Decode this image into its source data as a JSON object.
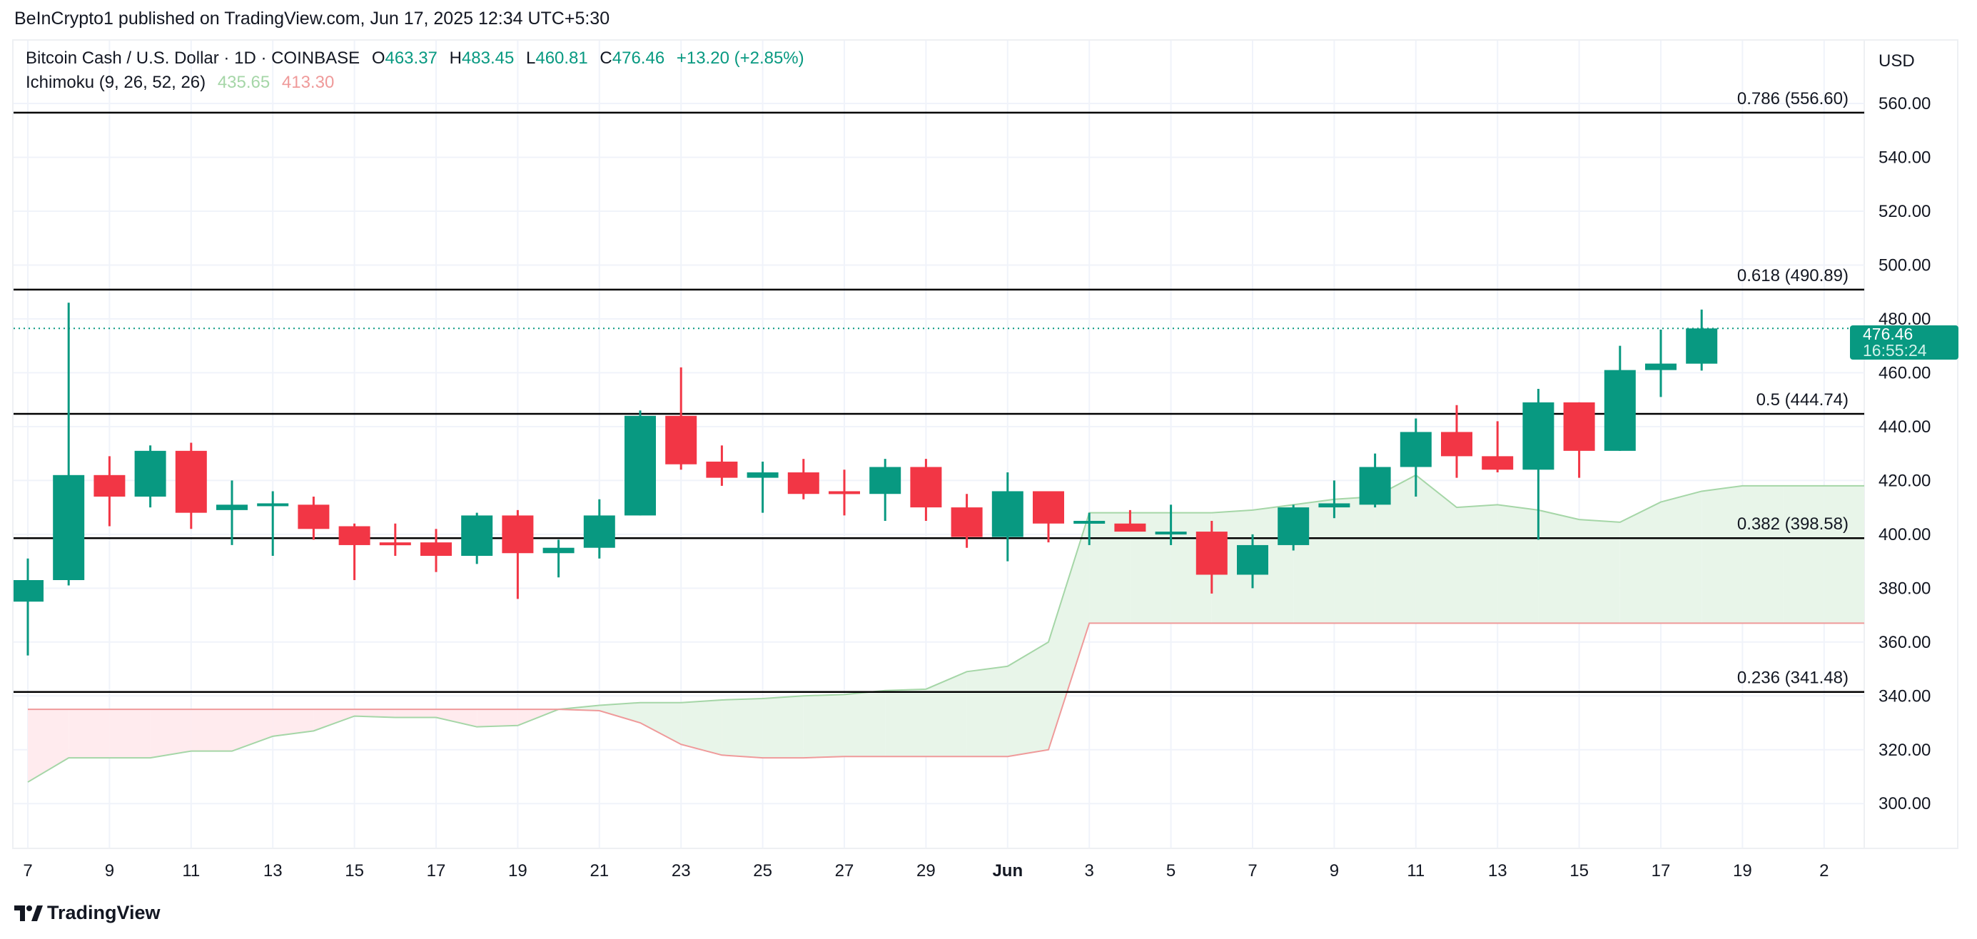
{
  "published": "BeInCrypto1 published on TradingView.com, Jun 17, 2025 12:34 UTC+5:30",
  "legend": {
    "symbol": "Bitcoin Cash / U.S. Dollar · 1D · COINBASE",
    "o_label": "O",
    "o": "463.37",
    "h_label": "H",
    "h": "483.45",
    "l_label": "L",
    "l": "460.81",
    "c_label": "C",
    "c": "476.46",
    "change": "+13.20 (+2.85%)",
    "indicator": "Ichimoku (9, 26, 52, 26)",
    "ind_val1": "435.65",
    "ind_val2": "413.30"
  },
  "currency": "USD",
  "price_badge": {
    "price": "476.46",
    "countdown": "16:55:24"
  },
  "branding": "TradingView",
  "colors": {
    "up": "#089981",
    "down": "#f23645",
    "span_a": "#a5d6a7",
    "span_b": "#ef9a9a",
    "cloud_up": "#e8f5e9",
    "cloud_down": "#ffebee",
    "fib": "#000000"
  },
  "chart_data": {
    "type": "candlestick",
    "ylim": [
      280,
      570
    ],
    "yticks": [
      "300.00",
      "320.00",
      "340.00",
      "360.00",
      "380.00",
      "400.00",
      "420.00",
      "440.00",
      "460.00",
      "480.00",
      "500.00",
      "520.00",
      "540.00",
      "560.00"
    ],
    "xticks": [
      "7",
      "9",
      "11",
      "13",
      "15",
      "17",
      "19",
      "21",
      "23",
      "25",
      "27",
      "29",
      "Jun",
      "3",
      "5",
      "7",
      "9",
      "11",
      "13",
      "15",
      "17",
      "19",
      "2"
    ],
    "grid": true,
    "dates": [
      "May 7",
      "May 8",
      "May 9",
      "May 10",
      "May 11",
      "May 12",
      "May 13",
      "May 14",
      "May 15",
      "May 16",
      "May 17",
      "May 18",
      "May 19",
      "May 20",
      "May 21",
      "May 22",
      "May 23",
      "May 24",
      "May 25",
      "May 26",
      "May 27",
      "May 28",
      "May 29",
      "May 30",
      "May 31",
      "Jun 1",
      "Jun 2",
      "Jun 3",
      "Jun 4",
      "Jun 5",
      "Jun 6",
      "Jun 7",
      "Jun 8",
      "Jun 9",
      "Jun 10",
      "Jun 11",
      "Jun 12",
      "Jun 13",
      "Jun 14",
      "Jun 15",
      "Jun 16",
      "Jun 17"
    ],
    "ohlc": [
      [
        375,
        383,
        391,
        355
      ],
      [
        383,
        422,
        486,
        381
      ],
      [
        422,
        414,
        429,
        403
      ],
      [
        414,
        431,
        433,
        410
      ],
      [
        431,
        408,
        434,
        402
      ],
      [
        409,
        411,
        420,
        396
      ],
      [
        411,
        411.5,
        416,
        392
      ],
      [
        411,
        402,
        414,
        398
      ],
      [
        403,
        396,
        404,
        383
      ],
      [
        397,
        396,
        404,
        392
      ],
      [
        397,
        392,
        402,
        386
      ],
      [
        392,
        407,
        408,
        389
      ],
      [
        407,
        393,
        409,
        376
      ],
      [
        393,
        395,
        398,
        384
      ],
      [
        395,
        407,
        413,
        391
      ],
      [
        407,
        444,
        446,
        407
      ],
      [
        444,
        426,
        462,
        424
      ],
      [
        427,
        421,
        433,
        418
      ],
      [
        421,
        423,
        427,
        408
      ],
      [
        423,
        415,
        428,
        413
      ],
      [
        416,
        415,
        424,
        407
      ],
      [
        415,
        425,
        428,
        405
      ],
      [
        425,
        410,
        428,
        405
      ],
      [
        410,
        399,
        415,
        395
      ],
      [
        399,
        416,
        423,
        390
      ],
      [
        416,
        404,
        416,
        397
      ],
      [
        404,
        405,
        408,
        396
      ],
      [
        404,
        401,
        409,
        401
      ],
      [
        401,
        401,
        411,
        396
      ],
      [
        401,
        385,
        405,
        378
      ],
      [
        385,
        396,
        400,
        380
      ],
      [
        396,
        410,
        411,
        394
      ],
      [
        410,
        411.5,
        420,
        406
      ],
      [
        411,
        425,
        430,
        410
      ],
      [
        425,
        438,
        443,
        414
      ],
      [
        438,
        429,
        448,
        421
      ],
      [
        429,
        424,
        442,
        423
      ],
      [
        424,
        449,
        454,
        398
      ],
      [
        449,
        431,
        449,
        421
      ],
      [
        431,
        461,
        470,
        431
      ],
      [
        461,
        463.4,
        476,
        451
      ],
      [
        463.37,
        476.46,
        483.45,
        460.81
      ]
    ],
    "last_price": 476.46,
    "ichimoku": {
      "span_a": [
        308,
        317,
        317,
        317,
        319.5,
        319.5,
        325,
        327,
        332.5,
        332,
        332,
        328.5,
        329,
        335,
        336.5,
        337.5,
        337.5,
        338.5,
        339,
        340,
        340.5,
        342,
        342.5,
        349,
        351,
        360,
        408,
        408,
        408,
        408,
        409,
        411,
        413,
        414,
        422,
        410,
        411,
        409,
        405.5,
        404.5,
        412,
        416,
        418,
        418,
        418,
        418
      ],
      "span_b": [
        335,
        335,
        335,
        335,
        335,
        335,
        335,
        335,
        335,
        335,
        335,
        335,
        335,
        335,
        334.5,
        330,
        322,
        318,
        317,
        317,
        317.5,
        317.5,
        317.5,
        317.5,
        317.5,
        320,
        367,
        367,
        367,
        367,
        367,
        367,
        367,
        367,
        367,
        367,
        367,
        367,
        367,
        367,
        367,
        367,
        367,
        367,
        367,
        367
      ]
    },
    "fib_levels": [
      {
        "label": "0.786 (556.60)",
        "value": 556.6
      },
      {
        "label": "0.618 (490.89)",
        "value": 490.89
      },
      {
        "label": "0.5 (444.74)",
        "value": 444.74
      },
      {
        "label": "0.382 (398.58)",
        "value": 398.58
      },
      {
        "label": "0.236 (341.48)",
        "value": 341.48
      }
    ]
  }
}
